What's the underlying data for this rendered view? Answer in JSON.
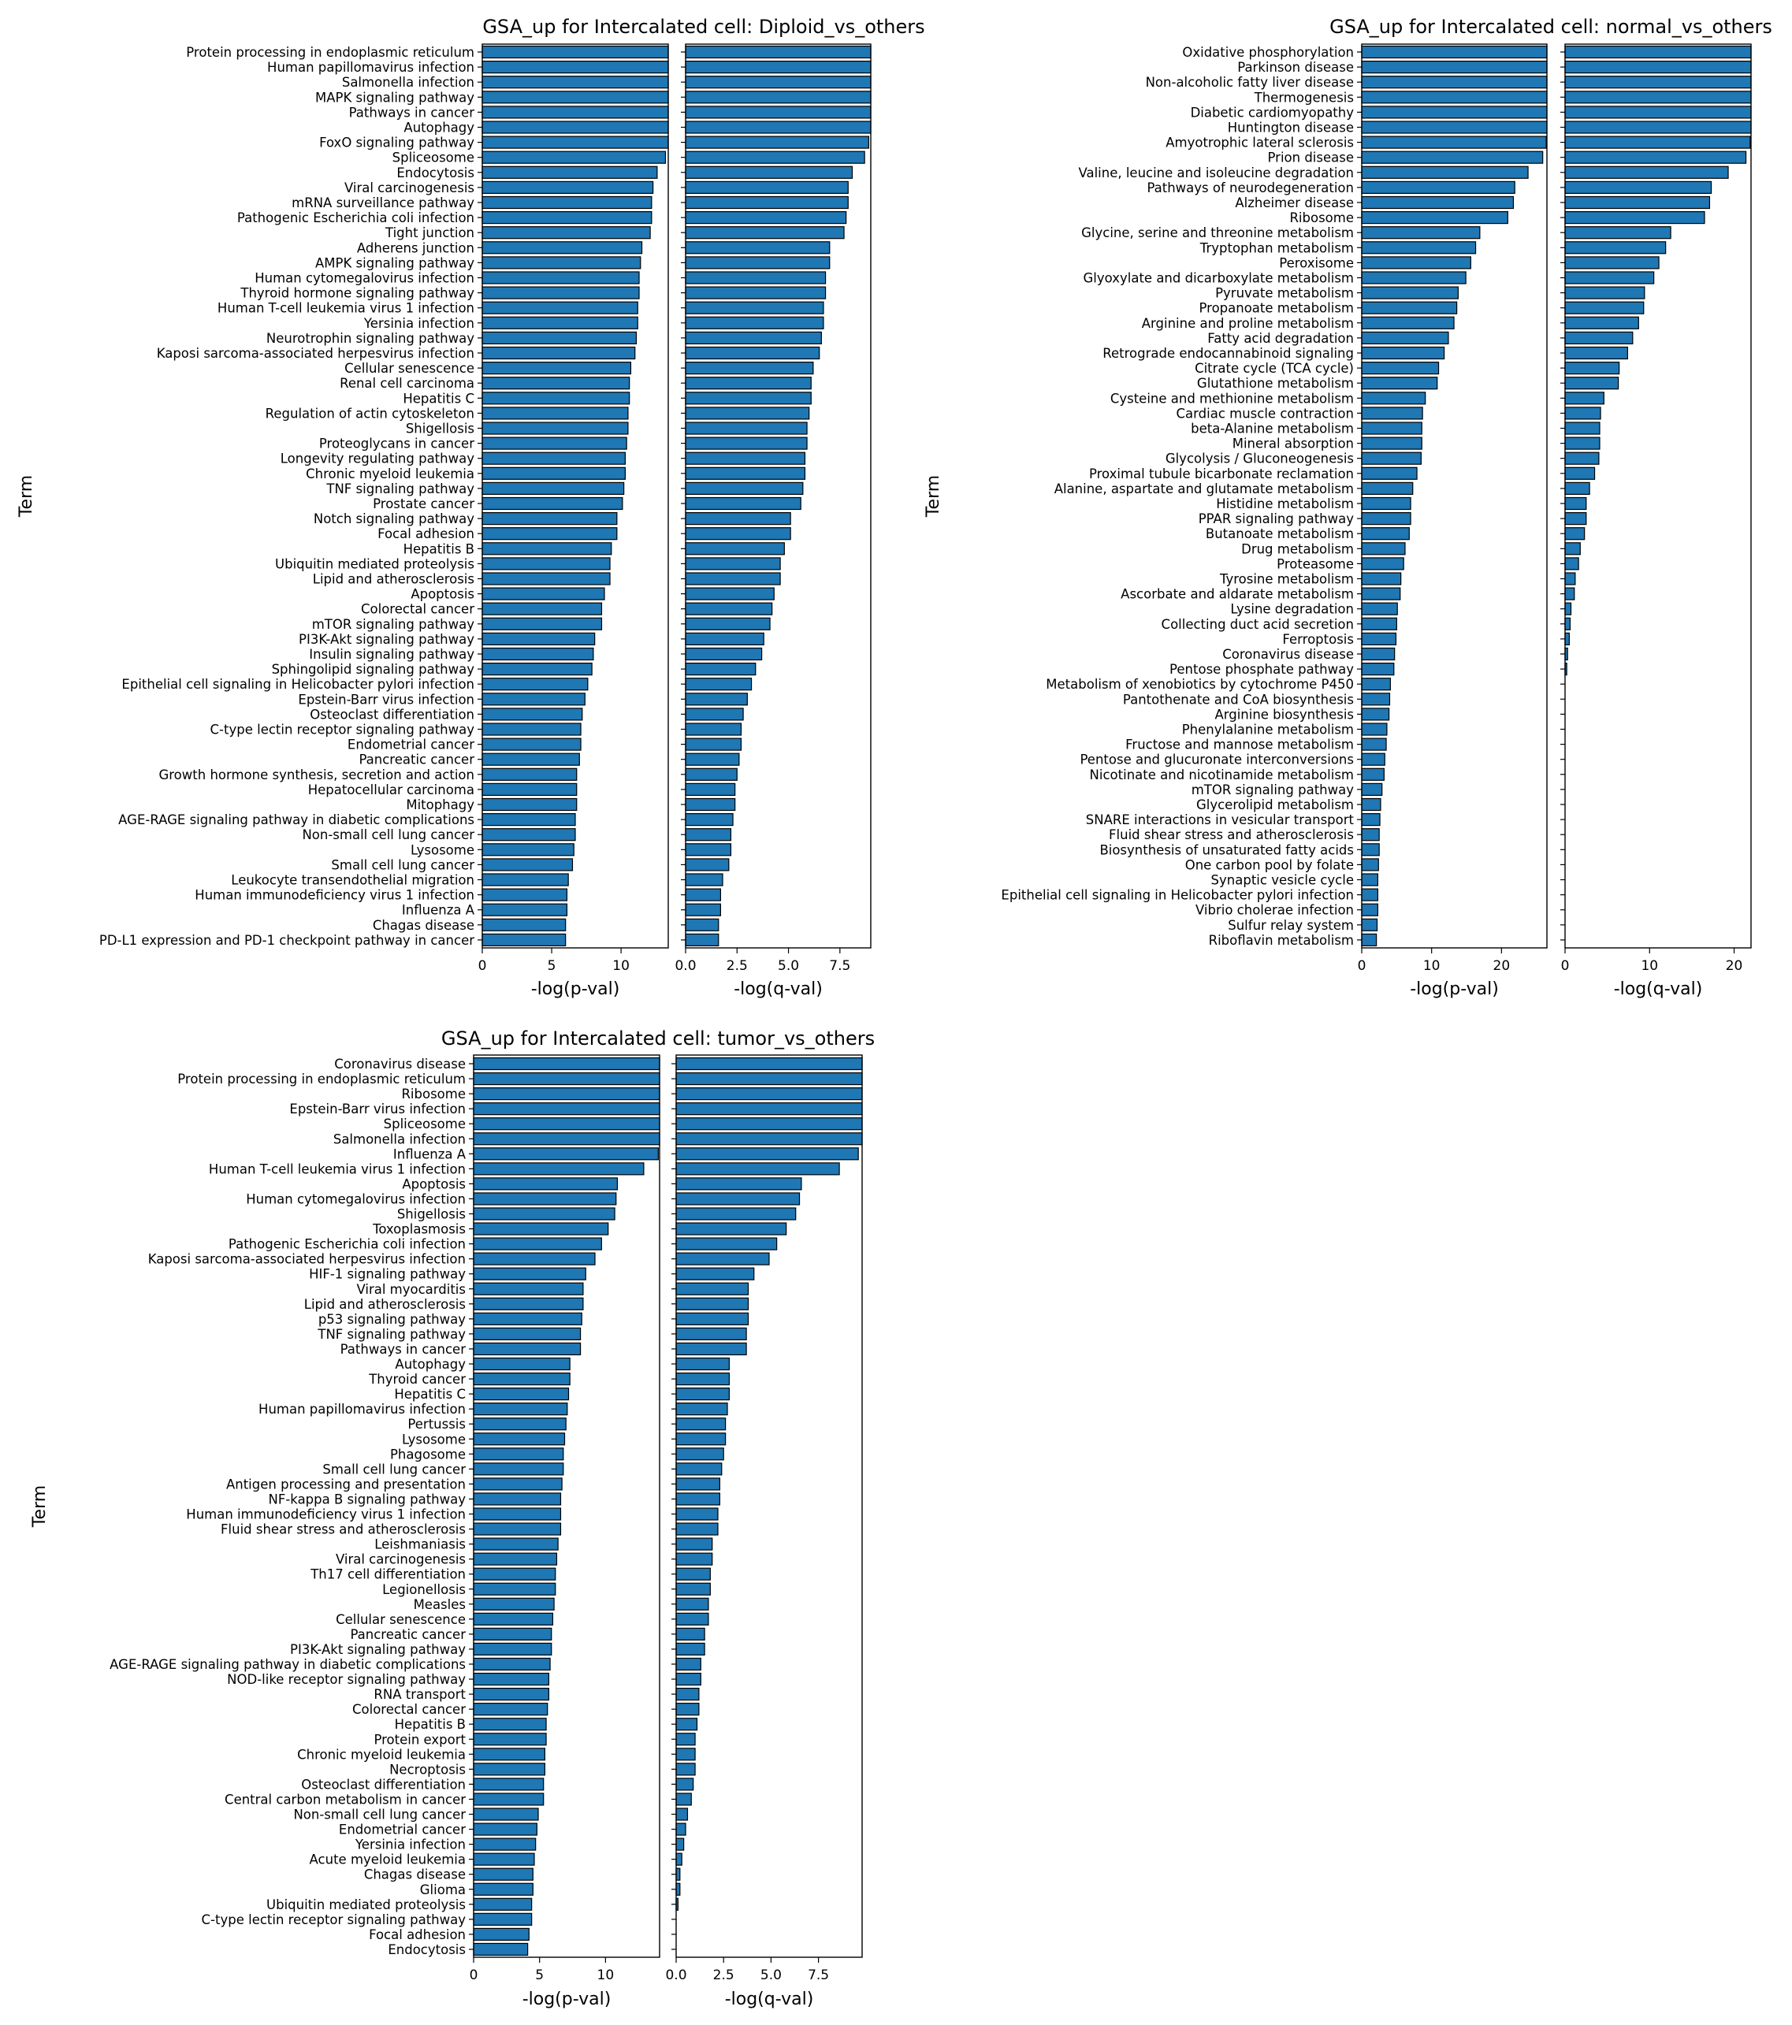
{
  "figure": {
    "background": "#ffffff",
    "bar_color": "#1f77b4",
    "edge_color": "#000000"
  },
  "chart_data": [
    {
      "type": "bar",
      "orientation": "horizontal",
      "title": "GSA_up for Intercalated cell: Diploid_vs_others",
      "ylabel": "Term",
      "categories": [
        "Protein processing in endoplasmic reticulum",
        "Human papillomavirus infection",
        "Salmonella infection",
        "MAPK signaling pathway",
        "Pathways in cancer",
        "Autophagy",
        "FoxO signaling pathway",
        "Spliceosome",
        "Endocytosis",
        "Viral carcinogenesis",
        "mRNA surveillance pathway",
        "Pathogenic Escherichia coli infection",
        "Tight junction",
        "Adherens junction",
        "AMPK signaling pathway",
        "Human cytomegalovirus infection",
        "Thyroid hormone signaling pathway",
        "Human T-cell leukemia virus 1 infection",
        "Yersinia infection",
        "Neurotrophin signaling pathway",
        "Kaposi sarcoma-associated herpesvirus infection",
        "Cellular senescence",
        "Renal cell carcinoma",
        "Hepatitis C",
        "Regulation of actin cytoskeleton",
        "Shigellosis",
        "Proteoglycans in cancer",
        "Longevity regulating pathway",
        "Chronic myeloid leukemia",
        "TNF signaling pathway",
        "Prostate cancer",
        "Notch signaling pathway",
        "Focal adhesion",
        "Hepatitis B",
        "Ubiquitin mediated proteolysis",
        "Lipid and atherosclerosis",
        "Apoptosis",
        "Colorectal cancer",
        "mTOR signaling pathway",
        "PI3K-Akt signaling pathway",
        "Insulin signaling pathway",
        "Sphingolipid signaling pathway",
        "Epithelial cell signaling in Helicobacter pylori infection",
        "Epstein-Barr virus infection",
        "Osteoclast differentiation",
        "C-type lectin receptor signaling pathway",
        "Endometrial cancer",
        "Pancreatic cancer",
        "Growth hormone synthesis, secretion and action",
        "Hepatocellular carcinoma",
        "Mitophagy",
        "AGE-RAGE signaling pathway in diabetic complications",
        "Non-small cell lung cancer",
        "Lysosome",
        "Small cell lung cancer",
        "Leukocyte transendothelial migration",
        "Human immunodeficiency virus 1 infection",
        "Influenza A",
        "Chagas disease",
        "PD-L1 expression and PD-1 checkpoint pathway in cancer"
      ],
      "panels": [
        {
          "xlabel": "-log(p-val)",
          "xlim": [
            0,
            13.4
          ],
          "xticks": [
            0,
            5,
            10
          ],
          "xtick_labels": [
            "0",
            "5",
            "10"
          ],
          "values": [
            13.4,
            13.4,
            13.4,
            13.4,
            13.4,
            13.4,
            13.4,
            13.2,
            12.6,
            12.3,
            12.2,
            12.2,
            12.1,
            11.5,
            11.4,
            11.3,
            11.3,
            11.2,
            11.2,
            11.1,
            11.0,
            10.7,
            10.6,
            10.6,
            10.5,
            10.5,
            10.4,
            10.3,
            10.3,
            10.2,
            10.1,
            9.7,
            9.7,
            9.3,
            9.2,
            9.2,
            8.8,
            8.6,
            8.6,
            8.1,
            8.0,
            7.9,
            7.6,
            7.4,
            7.2,
            7.1,
            7.1,
            7.0,
            6.8,
            6.8,
            6.8,
            6.7,
            6.7,
            6.6,
            6.5,
            6.2,
            6.1,
            6.1,
            6.0,
            6.0
          ]
        },
        {
          "xlabel": "-log(q-val)",
          "xlim": [
            0,
            9.0
          ],
          "xticks": [
            0,
            2.5,
            5.0,
            7.5
          ],
          "xtick_labels": [
            "0.0",
            "2.5",
            "5.0",
            "7.5"
          ],
          "values": [
            9.0,
            9.0,
            9.0,
            9.0,
            9.0,
            9.0,
            8.9,
            8.7,
            8.1,
            7.9,
            7.9,
            7.8,
            7.7,
            7.0,
            7.0,
            6.8,
            6.8,
            6.7,
            6.7,
            6.6,
            6.5,
            6.2,
            6.1,
            6.1,
            6.0,
            5.9,
            5.9,
            5.8,
            5.8,
            5.7,
            5.6,
            5.1,
            5.1,
            4.8,
            4.6,
            4.6,
            4.3,
            4.2,
            4.1,
            3.8,
            3.7,
            3.4,
            3.2,
            3.0,
            2.8,
            2.7,
            2.7,
            2.6,
            2.5,
            2.4,
            2.4,
            2.3,
            2.2,
            2.2,
            2.1,
            1.8,
            1.7,
            1.7,
            1.6,
            1.6
          ]
        }
      ]
    },
    {
      "type": "bar",
      "orientation": "horizontal",
      "title": "GSA_up for Intercalated cell: normal_vs_others",
      "ylabel": "Term",
      "categories": [
        "Oxidative phosphorylation",
        "Parkinson disease",
        "Non-alcoholic fatty liver disease",
        "Thermogenesis",
        "Diabetic cardiomyopathy",
        "Huntington disease",
        "Amyotrophic lateral sclerosis",
        "Prion disease",
        "Valine, leucine and isoleucine degradation",
        "Pathways of neurodegeneration",
        "Alzheimer disease",
        "Ribosome",
        "Glycine, serine and threonine metabolism",
        "Tryptophan metabolism",
        "Peroxisome",
        "Glyoxylate and dicarboxylate metabolism",
        "Pyruvate metabolism",
        "Propanoate metabolism",
        "Arginine and proline metabolism",
        "Fatty acid degradation",
        "Retrograde endocannabinoid signaling",
        "Citrate cycle (TCA cycle)",
        "Glutathione metabolism",
        "Cysteine and methionine metabolism",
        "Cardiac muscle contraction",
        "beta-Alanine metabolism",
        "Mineral absorption",
        "Glycolysis / Gluconeogenesis",
        "Proximal tubule bicarbonate reclamation",
        "Alanine, aspartate and glutamate metabolism",
        "Histidine metabolism",
        "PPAR signaling pathway",
        "Butanoate metabolism",
        "Drug metabolism",
        "Proteasome",
        "Tyrosine metabolism",
        "Ascorbate and aldarate metabolism",
        "Lysine degradation",
        "Collecting duct acid secretion",
        "Ferroptosis",
        "Coronavirus disease",
        "Pentose phosphate pathway",
        "Metabolism of xenobiotics by cytochrome P450",
        "Pantothenate and CoA biosynthesis",
        "Arginine biosynthesis",
        "Phenylalanine metabolism",
        "Fructose and mannose metabolism",
        "Pentose and glucuronate interconversions",
        "Nicotinate and nicotinamide metabolism",
        "mTOR signaling pathway",
        "Glycerolipid metabolism",
        "SNARE interactions in vesicular transport",
        "Fluid shear stress and atherosclerosis",
        "Biosynthesis of unsaturated fatty acids",
        "One carbon pool by folate",
        "Synaptic vesicle cycle",
        "Epithelial cell signaling in Helicobacter pylori infection",
        "Vibrio cholerae infection",
        "Sulfur relay system",
        "Riboflavin metabolism"
      ],
      "panels": [
        {
          "xlabel": "-log(p-val)",
          "xlim": [
            0,
            26.5
          ],
          "xticks": [
            0,
            10,
            20
          ],
          "xtick_labels": [
            "0",
            "10",
            "20"
          ],
          "values": [
            26.5,
            26.5,
            26.5,
            26.5,
            26.5,
            26.5,
            26.4,
            25.9,
            23.8,
            21.9,
            21.7,
            20.9,
            16.9,
            16.3,
            15.6,
            14.9,
            13.8,
            13.6,
            13.2,
            12.4,
            11.8,
            11.0,
            10.8,
            9.1,
            8.7,
            8.6,
            8.6,
            8.5,
            7.9,
            7.3,
            7.0,
            7.0,
            6.8,
            6.2,
            6.0,
            5.6,
            5.5,
            5.1,
            5.0,
            4.9,
            4.7,
            4.6,
            4.1,
            4.0,
            3.9,
            3.6,
            3.5,
            3.3,
            3.2,
            2.9,
            2.7,
            2.6,
            2.5,
            2.5,
            2.4,
            2.3,
            2.3,
            2.3,
            2.2,
            2.1
          ]
        },
        {
          "xlabel": "-log(q-val)",
          "xlim": [
            0,
            22.0
          ],
          "xticks": [
            0,
            10,
            20
          ],
          "xtick_labels": [
            "0",
            "10",
            "20"
          ],
          "values": [
            22.0,
            22.0,
            22.0,
            22.0,
            22.0,
            22.0,
            21.9,
            21.4,
            19.3,
            17.3,
            17.1,
            16.5,
            12.5,
            11.9,
            11.1,
            10.5,
            9.4,
            9.3,
            8.7,
            8.0,
            7.4,
            6.4,
            6.3,
            4.6,
            4.2,
            4.1,
            4.1,
            4.0,
            3.5,
            2.9,
            2.5,
            2.5,
            2.3,
            1.8,
            1.6,
            1.2,
            1.1,
            0.7,
            0.6,
            0.5,
            0.3,
            0.2,
            0.0,
            0.0,
            0.0,
            0.0,
            0.0,
            0.0,
            0.0,
            0.0,
            0.0,
            0.0,
            0.0,
            0.0,
            0.0,
            0.0,
            0.0,
            0.0,
            0.0,
            0.0
          ]
        }
      ]
    },
    {
      "type": "bar",
      "orientation": "horizontal",
      "title": "GSA_up for Intercalated cell: tumor_vs_others",
      "ylabel": "Term",
      "categories": [
        "Coronavirus disease",
        "Protein processing in endoplasmic reticulum",
        "Ribosome",
        "Epstein-Barr virus infection",
        "Spliceosome",
        "Salmonella infection",
        "Influenza A",
        "Human T-cell leukemia virus 1 infection",
        "Apoptosis",
        "Human cytomegalovirus infection",
        "Shigellosis",
        "Toxoplasmosis",
        "Pathogenic Escherichia coli infection",
        "Kaposi sarcoma-associated herpesvirus infection",
        "HIF-1 signaling pathway",
        "Viral myocarditis",
        "Lipid and atherosclerosis",
        "p53 signaling pathway",
        "TNF signaling pathway",
        "Pathways in cancer",
        "Autophagy",
        "Thyroid cancer",
        "Hepatitis C",
        "Human papillomavirus infection",
        "Pertussis",
        "Lysosome",
        "Phagosome",
        "Small cell lung cancer",
        "Antigen processing and presentation",
        "NF-kappa B signaling pathway",
        "Human immunodeficiency virus 1 infection",
        "Fluid shear stress and atherosclerosis",
        "Leishmaniasis",
        "Viral carcinogenesis",
        "Th17 cell differentiation",
        "Legionellosis",
        "Measles",
        "Cellular senescence",
        "Pancreatic cancer",
        "PI3K-Akt signaling pathway",
        "AGE-RAGE signaling pathway in diabetic complications",
        "NOD-like receptor signaling pathway",
        "RNA transport",
        "Colorectal cancer",
        "Hepatitis B",
        "Protein export",
        "Chronic myeloid leukemia",
        "Necroptosis",
        "Osteoclast differentiation",
        "Central carbon metabolism in cancer",
        "Non-small cell lung cancer",
        "Endometrial cancer",
        "Yersinia infection",
        "Acute myeloid leukemia",
        "Chagas disease",
        "Glioma",
        "Ubiquitin mediated proteolysis",
        "C-type lectin receptor signaling pathway",
        "Focal adhesion",
        "Endocytosis"
      ],
      "panels": [
        {
          "xlabel": "-log(p-val)",
          "xlim": [
            0,
            14.1
          ],
          "xticks": [
            0,
            5,
            10
          ],
          "xtick_labels": [
            "0",
            "5",
            "10"
          ],
          "values": [
            14.1,
            14.1,
            14.1,
            14.1,
            14.1,
            14.1,
            14.0,
            12.9,
            10.9,
            10.8,
            10.7,
            10.2,
            9.7,
            9.2,
            8.5,
            8.3,
            8.3,
            8.2,
            8.1,
            8.1,
            7.3,
            7.3,
            7.2,
            7.1,
            7.0,
            6.9,
            6.8,
            6.8,
            6.7,
            6.6,
            6.6,
            6.6,
            6.4,
            6.3,
            6.2,
            6.2,
            6.1,
            6.0,
            5.9,
            5.9,
            5.8,
            5.7,
            5.7,
            5.6,
            5.5,
            5.5,
            5.4,
            5.4,
            5.3,
            5.3,
            4.9,
            4.8,
            4.7,
            4.6,
            4.5,
            4.5,
            4.4,
            4.4,
            4.2,
            4.1
          ]
        },
        {
          "xlabel": "-log(q-val)",
          "xlim": [
            0,
            9.8
          ],
          "xticks": [
            0,
            2.5,
            5.0,
            7.5
          ],
          "xtick_labels": [
            "0.0",
            "2.5",
            "5.0",
            "7.5"
          ],
          "values": [
            9.8,
            9.8,
            9.8,
            9.8,
            9.8,
            9.8,
            9.6,
            8.6,
            6.6,
            6.5,
            6.3,
            5.8,
            5.3,
            4.9,
            4.1,
            3.8,
            3.8,
            3.8,
            3.7,
            3.7,
            2.8,
            2.8,
            2.8,
            2.7,
            2.6,
            2.6,
            2.5,
            2.4,
            2.3,
            2.3,
            2.2,
            2.2,
            1.9,
            1.9,
            1.8,
            1.8,
            1.7,
            1.7,
            1.5,
            1.5,
            1.3,
            1.3,
            1.2,
            1.2,
            1.1,
            1.0,
            1.0,
            1.0,
            0.9,
            0.8,
            0.6,
            0.5,
            0.4,
            0.3,
            0.2,
            0.2,
            0.1,
            0.0,
            0.0,
            0.0
          ]
        }
      ]
    }
  ]
}
